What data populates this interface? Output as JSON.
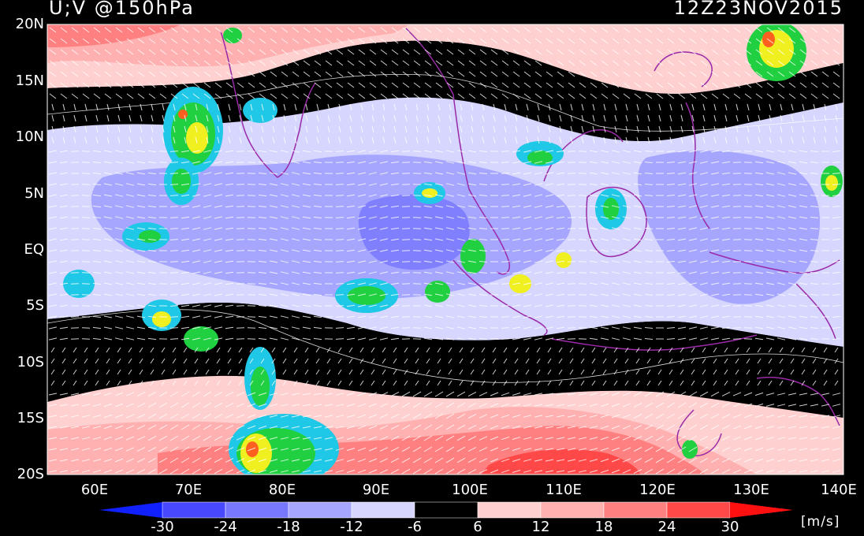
{
  "header": {
    "field": "U;V @150hPa",
    "datetime": "12Z23NOV2015"
  },
  "map": {
    "lat_labels": [
      "20N",
      "15N",
      "10N",
      "5N",
      "EQ",
      "5S",
      "10S",
      "15S",
      "20S"
    ],
    "lon_labels": [
      "60E",
      "70E",
      "80E",
      "90E",
      "100E",
      "110E",
      "120E",
      "130E",
      "140E"
    ],
    "colors": {
      "background": "#000000",
      "east_weak": "#ffd0d0",
      "east_mid": "#ffb0b0",
      "east_strong": "#ff8080",
      "east_max": "#ff3030",
      "west_weak": "#d6d6ff",
      "west_mid": "#a6a6ff",
      "west_strong": "#8080ff",
      "coast": "#9a2aa8",
      "wind_vector": "#ffffff",
      "precip_light": "#1ec8e6",
      "precip_mid": "#20d040",
      "precip_high": "#f0f020",
      "precip_max": "#ff6020"
    }
  },
  "colorbar": {
    "labels": [
      "-30",
      "-24",
      "-18",
      "-12",
      "-6",
      "6",
      "12",
      "18",
      "24",
      "30"
    ],
    "units": "[m/s]",
    "colors": [
      "#1020ff",
      "#4848ff",
      "#7878ff",
      "#a6a6ff",
      "#d6d6ff",
      "#000000",
      "#ffd0d0",
      "#ffb0b0",
      "#ff8080",
      "#ff4848",
      "#ff1010"
    ]
  }
}
